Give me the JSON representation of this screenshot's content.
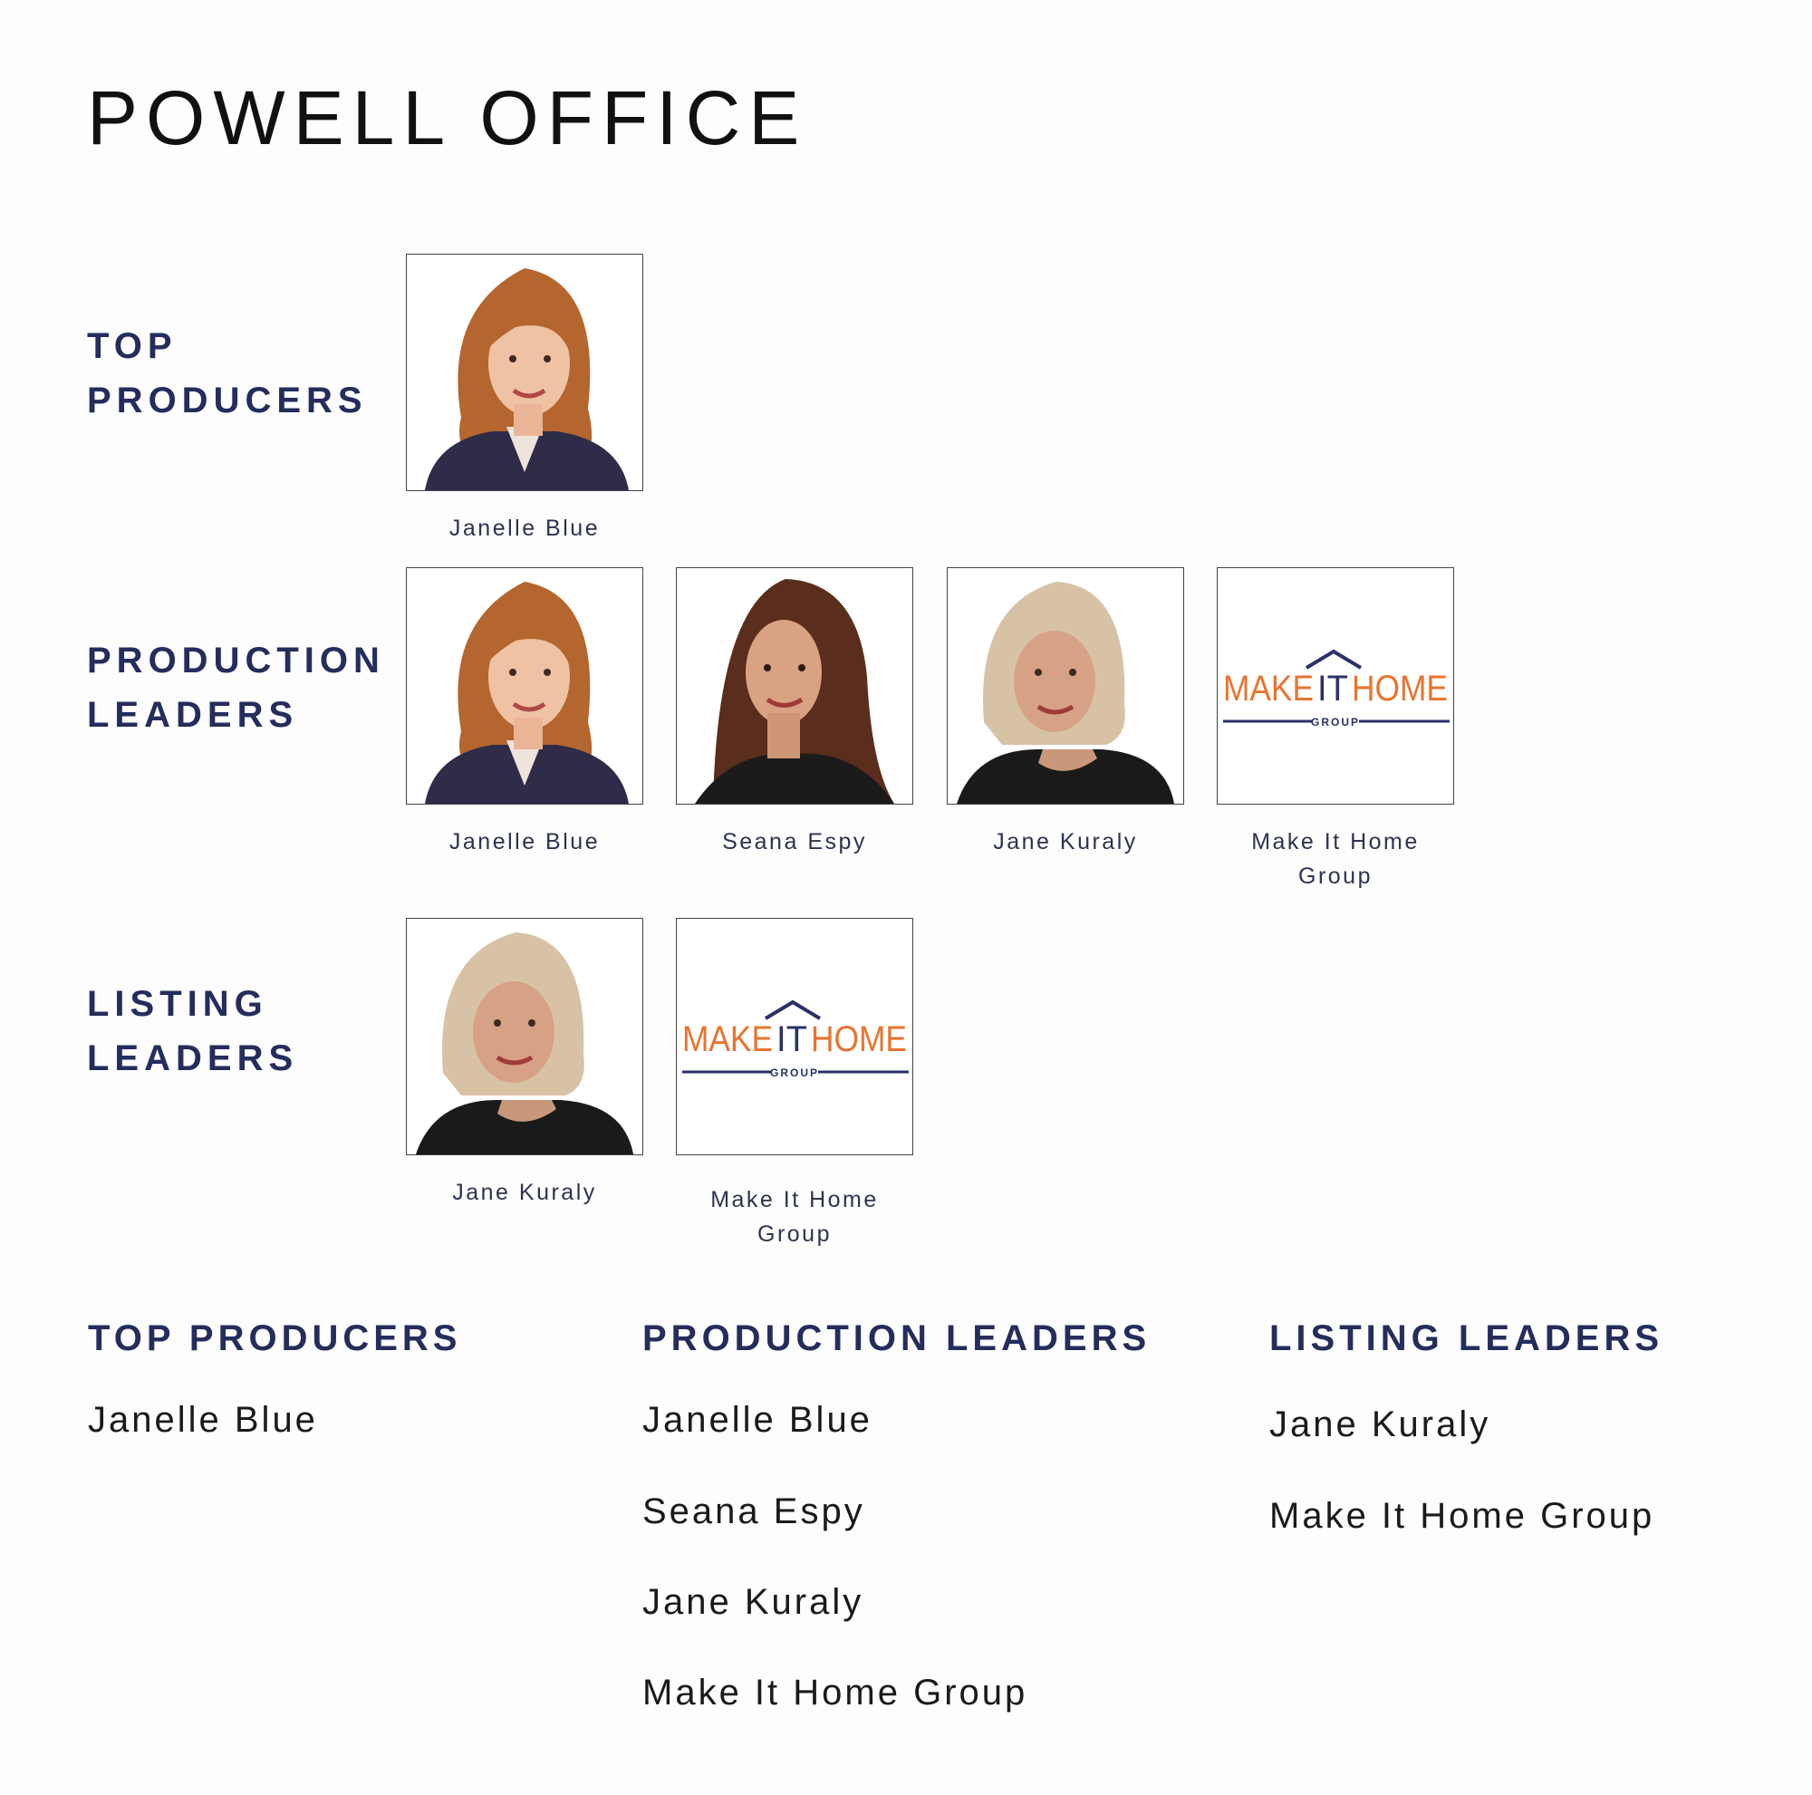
{
  "page": {
    "title": "POWELL OFFICE"
  },
  "sections": [
    {
      "label_lines": [
        "TOP",
        "PRODUCERS"
      ],
      "members": [
        {
          "name": "Janelle Blue",
          "image": "portrait-red-hair"
        }
      ]
    },
    {
      "label_lines": [
        "PRODUCTION",
        "LEADERS"
      ],
      "members": [
        {
          "name": "Janelle Blue",
          "image": "portrait-red-hair"
        },
        {
          "name": "Seana Espy",
          "image": "portrait-brown-hair"
        },
        {
          "name": "Jane Kuraly",
          "image": "portrait-blonde-hair"
        },
        {
          "name_lines": [
            "Make It Home",
            "Group"
          ],
          "image": "make-it-home-logo"
        }
      ]
    },
    {
      "label_lines": [
        "LISTING",
        "LEADERS"
      ],
      "members": [
        {
          "name": "Jane Kuraly",
          "image": "portrait-blonde-hair"
        },
        {
          "name_lines": [
            "Make It Home",
            "Group"
          ],
          "image": "make-it-home-logo"
        }
      ]
    }
  ],
  "logo": {
    "text_left": "MAKE",
    "text_mid": "IT",
    "text_right": "HOME",
    "subtitle": "GROUP",
    "orange": "#e8742f",
    "navy": "#2b3168"
  },
  "lists": [
    {
      "heading": "TOP PRODUCERS",
      "items": [
        "Janelle Blue"
      ]
    },
    {
      "heading": "PRODUCTION LEADERS",
      "items": [
        "Janelle Blue",
        "Seana Espy",
        "Jane Kuraly",
        "Make It Home Group"
      ]
    },
    {
      "heading": "LISTING LEADERS",
      "items": [
        "Jane Kuraly",
        "Make It Home Group"
      ]
    }
  ],
  "colors": {
    "heading": "#242d5c",
    "text": "#1a1a1a"
  }
}
